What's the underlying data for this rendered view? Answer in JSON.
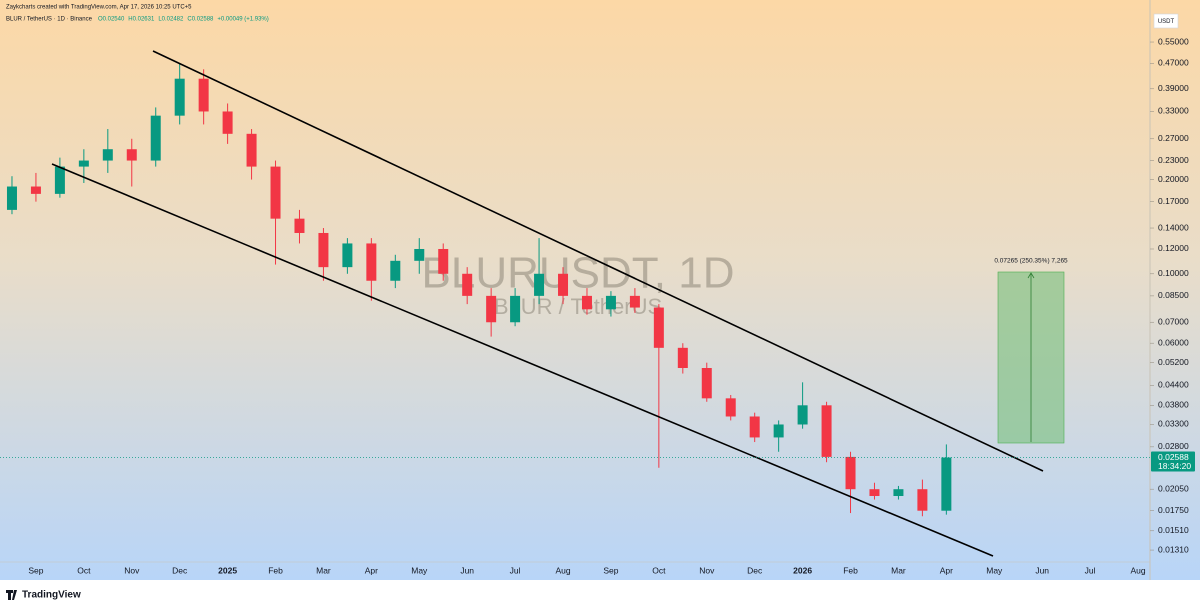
{
  "header": {
    "credit": "Zaykcharts created with TradingView.com, Apr 17, 2026 10:25 UTC+5",
    "symbol_line": "BLUR / TetherUS · 1D · Binance",
    "legend_values": [
      "O0.02540",
      "H0.02631",
      "L0.02482",
      "C0.02588",
      "+0.00049 (+1.93%)"
    ]
  },
  "chart_data": {
    "type": "candlestick",
    "currency": "USDT",
    "watermark": "BLURUSDT, 1D",
    "watermark_sub": "BLUR / TetherUS",
    "log_scale": true,
    "up_color": "#089981",
    "down_color": "#f23645",
    "categories": [
      null,
      "Sep",
      null,
      "Oct",
      null,
      "Nov",
      null,
      "Dec",
      null,
      "2025",
      null,
      "Feb",
      null,
      "Mar",
      null,
      "Apr",
      null,
      "May",
      null,
      "Jun",
      null,
      "Jul",
      null,
      "Aug",
      null,
      "Sep",
      null,
      "Oct",
      null,
      "Nov",
      null,
      "Dec",
      null,
      "2026",
      null,
      "Feb",
      null,
      "Mar",
      null,
      "Apr",
      null,
      "May",
      null,
      "Jun",
      null,
      "Jul",
      null,
      "Aug"
    ],
    "open": [
      0.16,
      0.19,
      0.18,
      0.22,
      0.23,
      0.25,
      0.23,
      0.32,
      0.42,
      0.33,
      0.28,
      0.22,
      0.15,
      0.135,
      0.105,
      0.125,
      0.095,
      0.11,
      0.12,
      0.1,
      0.085,
      0.07,
      0.085,
      0.1,
      0.085,
      0.077,
      0.085,
      0.078,
      0.058,
      0.05,
      0.04,
      0.035,
      0.03,
      0.033,
      0.038,
      0.026,
      0.0205,
      0.0195,
      0.0205,
      0.0175,
      null,
      null,
      null,
      null,
      null,
      null,
      null,
      null
    ],
    "high": [
      0.205,
      0.21,
      0.235,
      0.25,
      0.29,
      0.27,
      0.34,
      0.47,
      0.45,
      0.35,
      0.29,
      0.23,
      0.16,
      0.14,
      0.13,
      0.13,
      0.115,
      0.13,
      0.125,
      0.105,
      0.09,
      0.09,
      0.13,
      0.105,
      0.09,
      0.088,
      0.09,
      0.08,
      0.06,
      0.052,
      0.041,
      0.036,
      0.034,
      0.045,
      0.039,
      0.027,
      0.0215,
      0.021,
      0.022,
      0.0285,
      null,
      null,
      null,
      null,
      null,
      null,
      null,
      null
    ],
    "low": [
      0.155,
      0.17,
      0.175,
      0.195,
      0.21,
      0.19,
      0.22,
      0.3,
      0.3,
      0.26,
      0.2,
      0.107,
      0.125,
      0.095,
      0.1,
      0.082,
      0.09,
      0.1,
      0.095,
      0.08,
      0.063,
      0.068,
      0.08,
      0.08,
      0.074,
      0.073,
      0.075,
      0.024,
      0.048,
      0.039,
      0.034,
      0.029,
      0.027,
      0.032,
      0.025,
      0.0172,
      0.019,
      0.019,
      0.0168,
      0.017,
      null,
      null,
      null,
      null,
      null,
      null,
      null,
      null
    ],
    "close": [
      0.19,
      0.18,
      0.22,
      0.23,
      0.25,
      0.23,
      0.32,
      0.42,
      0.33,
      0.28,
      0.22,
      0.15,
      0.135,
      0.105,
      0.125,
      0.095,
      0.11,
      0.12,
      0.1,
      0.085,
      0.07,
      0.085,
      0.1,
      0.085,
      0.077,
      0.085,
      0.078,
      0.058,
      0.05,
      0.04,
      0.035,
      0.03,
      0.033,
      0.038,
      0.026,
      0.0205,
      0.0195,
      0.0205,
      0.0175,
      0.02588,
      null,
      null,
      null,
      null,
      null,
      null,
      null,
      null
    ],
    "ylim": [
      0.012,
      0.686
    ],
    "yticks": [
      {
        "value": 0.55,
        "label": "0.55000"
      },
      {
        "value": 0.47,
        "label": "0.47000"
      },
      {
        "value": 0.39,
        "label": "0.39000"
      },
      {
        "value": 0.33,
        "label": "0.33000"
      },
      {
        "value": 0.27,
        "label": "0.27000"
      },
      {
        "value": 0.23,
        "label": "0.23000"
      },
      {
        "value": 0.2,
        "label": "0.20000"
      },
      {
        "value": 0.17,
        "label": "0.17000"
      },
      {
        "value": 0.14,
        "label": "0.14000"
      },
      {
        "value": 0.12,
        "label": "0.12000"
      },
      {
        "value": 0.1,
        "label": "0.10000"
      },
      {
        "value": 0.085,
        "label": "0.08500"
      },
      {
        "value": 0.07,
        "label": "0.07000"
      },
      {
        "value": 0.06,
        "label": "0.06000"
      },
      {
        "value": 0.052,
        "label": "0.05200"
      },
      {
        "value": 0.044,
        "label": "0.04400"
      },
      {
        "value": 0.038,
        "label": "0.03800"
      },
      {
        "value": 0.033,
        "label": "0.03300"
      },
      {
        "value": 0.028,
        "label": "0.02800"
      },
      {
        "value": 0.0205,
        "label": "0.02050"
      },
      {
        "value": 0.0175,
        "label": "0.01750"
      },
      {
        "value": 0.0151,
        "label": "0.01510"
      },
      {
        "value": 0.0131,
        "label": "0.01310"
      }
    ],
    "last_price": 0.02588,
    "countdown": "18:34:20",
    "annotation": "0.07265 (250.35%) 7,265"
  },
  "footer": {
    "brand": "TradingView"
  }
}
